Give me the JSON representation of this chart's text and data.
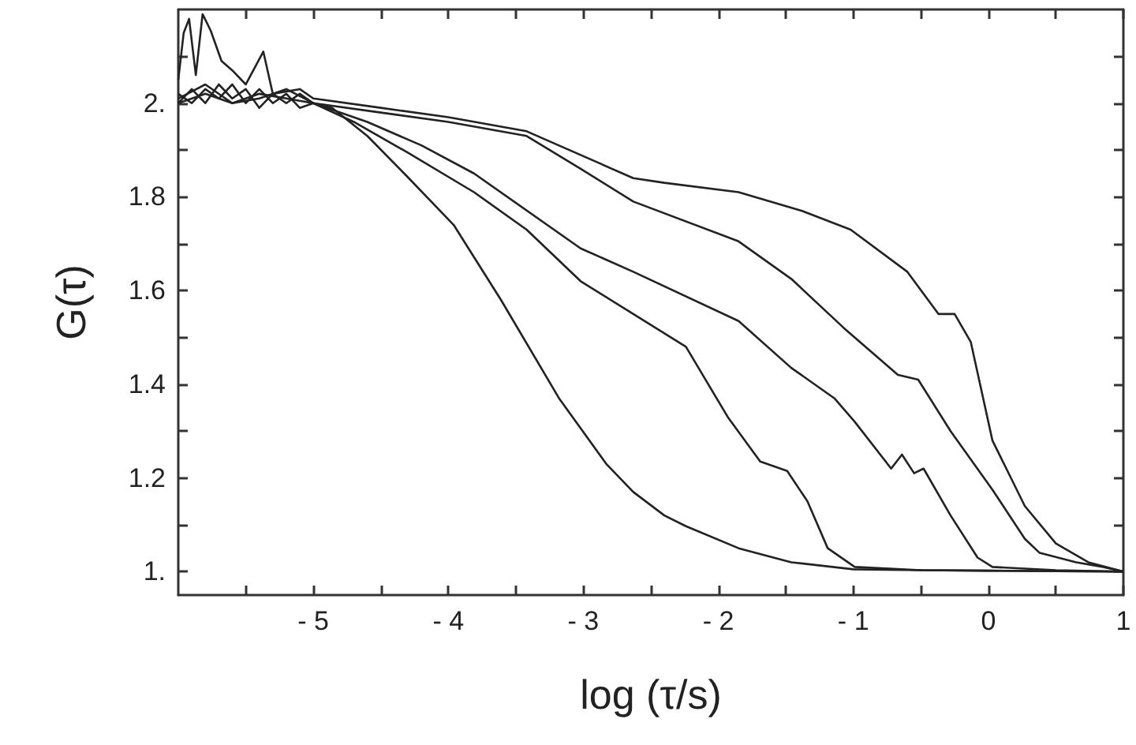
{
  "chart_data": {
    "type": "line",
    "xlabel": "log (τ/s)",
    "ylabel": "G(τ)",
    "xlim": [
      -6,
      1
    ],
    "ylim": [
      0.95,
      2.2
    ],
    "xticks": [
      {
        "value": -5.5,
        "label": null
      },
      {
        "value": -5,
        "label": "- 5"
      },
      {
        "value": -4.5,
        "label": null
      },
      {
        "value": -4,
        "label": "- 4"
      },
      {
        "value": -3.5,
        "label": null
      },
      {
        "value": -3,
        "label": "- 3"
      },
      {
        "value": -2.5,
        "label": null
      },
      {
        "value": -2,
        "label": "- 2"
      },
      {
        "value": -1.5,
        "label": null
      },
      {
        "value": -1,
        "label": "- 1"
      },
      {
        "value": -0.5,
        "label": null
      },
      0,
      {
        "value": 0.5,
        "label": null
      },
      1
    ],
    "yticks": [
      {
        "value": 1,
        "label": "1."
      },
      {
        "value": 1.1,
        "label": null
      },
      1.2,
      {
        "value": 1.3,
        "label": null
      },
      1.4,
      {
        "value": 1.5,
        "label": null
      },
      1.6,
      {
        "value": 1.7,
        "label": null
      },
      1.8,
      {
        "value": 1.9,
        "label": null
      },
      {
        "value": 2,
        "label": "2."
      },
      {
        "value": 2.1,
        "label": null
      }
    ],
    "grid": false,
    "marker": "none",
    "line_style": "solid",
    "series": [
      {
        "color": "#222222",
        "x": [
          -6,
          -5.9,
          -5.8,
          -5.7,
          -5.6,
          -5.5,
          -5.4,
          -5.3,
          -5.2,
          -5.1,
          -5,
          -4.86,
          -4.6,
          -4.31,
          -3.96,
          -3.61,
          -3.18,
          -2.83,
          -2.63,
          -2.4,
          -2.24,
          -1.85,
          -1.46,
          -1,
          -0.5,
          0,
          0.5,
          1
        ],
        "values": [
          2.0,
          2.03,
          2.0,
          2.04,
          2.01,
          2.03,
          1.99,
          2.02,
          2.0,
          2.02,
          2.0,
          1.99,
          1.93,
          1.845,
          1.74,
          1.58,
          1.37,
          1.23,
          1.17,
          1.12,
          1.097,
          1.05,
          1.02,
          1.005,
          1.003,
          1.002,
          1.001,
          1.0
        ]
      },
      {
        "color": "#222222",
        "x": [
          -6,
          -5.9,
          -5.8,
          -5.7,
          -5.6,
          -5.5,
          -5.4,
          -5.3,
          -5.2,
          -5.1,
          -5,
          -4.7,
          -4.31,
          -3.81,
          -3.42,
          -3.02,
          -2.63,
          -2.24,
          -1.93,
          -1.69,
          -1.49,
          -1.34,
          -1.19,
          -0.99,
          -0.5,
          0,
          0.5,
          1
        ],
        "values": [
          2.02,
          2.0,
          2.03,
          2.01,
          2.04,
          2.0,
          2.03,
          2.0,
          2.02,
          1.99,
          2.0,
          1.96,
          1.896,
          1.81,
          1.73,
          1.62,
          1.55,
          1.48,
          1.33,
          1.235,
          1.215,
          1.15,
          1.05,
          1.01,
          1.003,
          1.002,
          1.001,
          1.0
        ]
      },
      {
        "color": "#222222",
        "x": [
          -6,
          -5.8,
          -5.6,
          -5.4,
          -5.2,
          -5,
          -4.6,
          -4.2,
          -3.81,
          -3.02,
          -2.63,
          -1.85,
          -1.46,
          -1.14,
          -0.99,
          -0.72,
          -0.64,
          -0.55,
          -0.48,
          -0.28,
          -0.08,
          0.03,
          0.5,
          1
        ],
        "values": [
          2.01,
          2.04,
          2.0,
          2.02,
          2.01,
          2.0,
          1.96,
          1.91,
          1.85,
          1.69,
          1.64,
          1.535,
          1.435,
          1.37,
          1.32,
          1.22,
          1.25,
          1.21,
          1.22,
          1.12,
          1.03,
          1.01,
          1.003,
          1.0
        ]
      },
      {
        "color": "#222222",
        "x": [
          -6,
          -5.8,
          -5.6,
          -5.4,
          -5.2,
          -5,
          -4.5,
          -4,
          -3.42,
          -3.02,
          -2.63,
          -1.85,
          -1.46,
          -1.07,
          -0.67,
          -0.52,
          -0.28,
          0.03,
          0.27,
          0.38,
          0.65,
          0.85,
          1
        ],
        "values": [
          2.0,
          2.02,
          2.0,
          2.01,
          2.03,
          2.0,
          1.98,
          1.96,
          1.93,
          1.86,
          1.79,
          1.705,
          1.625,
          1.52,
          1.42,
          1.41,
          1.3,
          1.175,
          1.07,
          1.04,
          1.02,
          1.01,
          1.0
        ]
      },
      {
        "color": "#222222",
        "x": [
          -6,
          -5.96,
          -5.92,
          -5.87,
          -5.82,
          -5.76,
          -5.68,
          -5.6,
          -5.5,
          -5.37,
          -5.3,
          -5.1,
          -5,
          -4.5,
          -4,
          -3.42,
          -2.63,
          -2.4,
          -1.85,
          -1.38,
          -1.02,
          -0.6,
          -0.37,
          -0.25,
          -0.13,
          0.03,
          0.27,
          0.5,
          0.74,
          1
        ],
        "values": [
          2.05,
          2.15,
          2.18,
          2.06,
          2.19,
          2.155,
          2.09,
          2.07,
          2.04,
          2.11,
          2.02,
          2.03,
          2.01,
          1.99,
          1.97,
          1.94,
          1.84,
          1.83,
          1.81,
          1.77,
          1.73,
          1.64,
          1.55,
          1.55,
          1.49,
          1.28,
          1.14,
          1.06,
          1.02,
          1.0
        ]
      }
    ]
  }
}
